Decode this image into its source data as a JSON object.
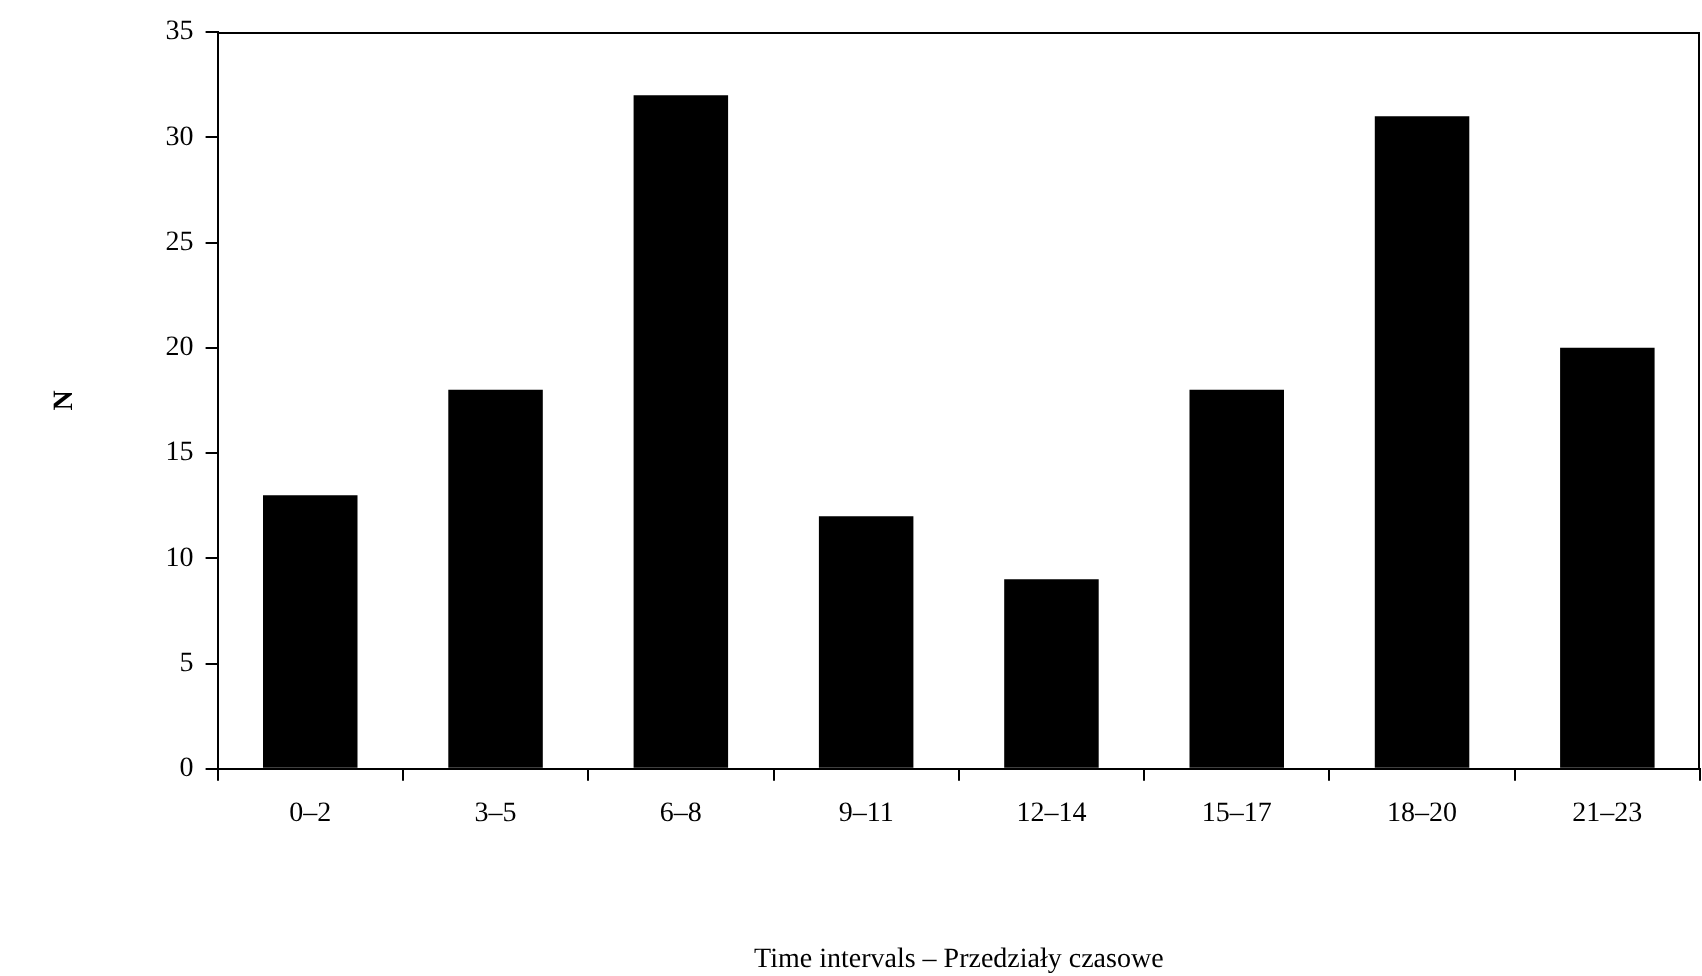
{
  "chart_data": {
    "type": "bar",
    "xlabel": "Time intervals – Przedziały czasowe",
    "ylabel": "N",
    "categories": [
      "0–2",
      "3–5",
      "6–8",
      "9–11",
      "12–14",
      "15–17",
      "18–20",
      "21–23"
    ],
    "values": [
      13,
      18,
      32,
      12,
      9,
      18,
      31,
      20
    ],
    "color": "#000000",
    "ylim": [
      0,
      35
    ],
    "yticks": [
      0,
      5,
      10,
      15,
      20,
      25,
      30,
      35
    ],
    "grid": false
  }
}
